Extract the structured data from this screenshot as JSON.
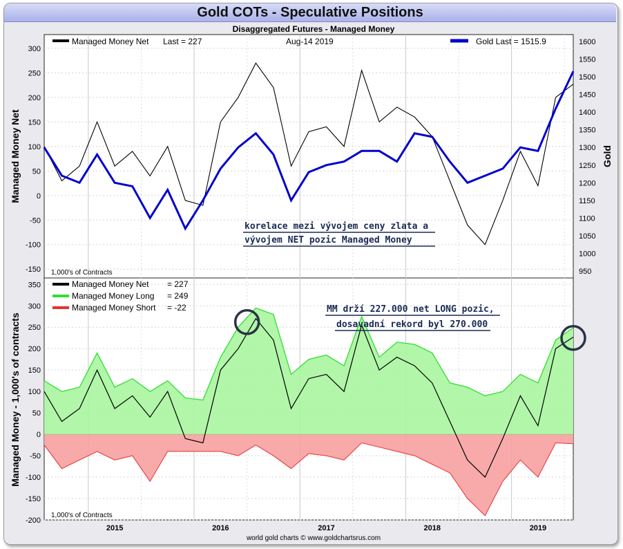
{
  "title": "Gold COTs - Speculative Positions",
  "subtitle": "Disaggregated Futures - Managed Money",
  "footer": "world gold charts © www.goldchartsrus.com",
  "colors": {
    "net": "#000000",
    "gold": "#0000cc",
    "long_line": "#33dd33",
    "long_fill": "#a8f5a0",
    "short_line": "#e83030",
    "short_fill": "#f7a0a0",
    "annotation": "#1a2a55"
  },
  "chart_data": [
    {
      "type": "line",
      "panel": "top",
      "date_label": "Aug-14 2019",
      "ylabel_left": "Managed Money Net",
      "ylabel_right": "Gold",
      "units_note": "1,000's of Contracts",
      "ylim_left": [
        -150,
        300
      ],
      "ylim_right": [
        950,
        1600
      ],
      "yticks_left": [
        -150,
        -100,
        -50,
        0,
        50,
        100,
        150,
        200,
        250,
        300
      ],
      "yticks_right": [
        950,
        1000,
        1050,
        1100,
        1150,
        1200,
        1250,
        1300,
        1350,
        1400,
        1450,
        1500,
        1550,
        1600
      ],
      "legend": [
        {
          "key": "net",
          "label": "Managed Money Net",
          "last_label": "Last = 227"
        },
        {
          "key": "gold",
          "label": "Gold Last = 1515.9"
        }
      ],
      "annotation": [
        "korelace mezi vývojem ceny zlata a",
        "vývojem NET pozic Managed Money"
      ],
      "x": [
        "2014-08",
        "2014-10",
        "2014-12",
        "2015-02",
        "2015-04",
        "2015-06",
        "2015-08",
        "2015-10",
        "2015-12",
        "2016-02",
        "2016-04",
        "2016-06",
        "2016-08",
        "2016-10",
        "2016-12",
        "2017-02",
        "2017-04",
        "2017-06",
        "2017-08",
        "2017-10",
        "2017-12",
        "2018-02",
        "2018-04",
        "2018-06",
        "2018-08",
        "2018-10",
        "2018-12",
        "2019-02",
        "2019-04",
        "2019-06",
        "2019-08"
      ],
      "series": [
        {
          "name": "Managed Money Net",
          "axis": "left",
          "values": [
            100,
            30,
            60,
            150,
            60,
            90,
            40,
            100,
            -10,
            -20,
            150,
            200,
            270,
            220,
            60,
            130,
            140,
            100,
            255,
            150,
            180,
            160,
            120,
            30,
            -60,
            -100,
            -10,
            90,
            20,
            200,
            227
          ]
        },
        {
          "name": "Gold",
          "axis": "right",
          "values": [
            1300,
            1220,
            1200,
            1280,
            1200,
            1190,
            1100,
            1180,
            1070,
            1150,
            1240,
            1300,
            1340,
            1280,
            1150,
            1230,
            1250,
            1260,
            1290,
            1290,
            1260,
            1340,
            1330,
            1260,
            1200,
            1220,
            1240,
            1300,
            1290,
            1410,
            1515.9
          ]
        }
      ]
    },
    {
      "type": "area",
      "panel": "bottom",
      "ylabel": "Managed Money - 1,000's of contracts",
      "units_note": "1,000's of Contracts",
      "ylim": [
        -200,
        350
      ],
      "yticks": [
        -200,
        -150,
        -100,
        -50,
        0,
        50,
        100,
        150,
        200,
        250,
        300,
        350
      ],
      "legend": [
        {
          "key": "net",
          "label": "Managed Money Net",
          "value": "= 227"
        },
        {
          "key": "long",
          "label": "Managed Money Long",
          "value": "= 249"
        },
        {
          "key": "short",
          "label": "Managed Money Short",
          "value": "= -22"
        }
      ],
      "annotation": [
        "MM drží 227.000 net LONG pozic,",
        "dosavadní rekord byl 270.000"
      ],
      "circles_at": [
        "2016-07",
        "2019-08"
      ],
      "x_tick_labels": [
        "2015",
        "2016",
        "2017",
        "2018",
        "2019"
      ],
      "x": [
        "2014-08",
        "2014-10",
        "2014-12",
        "2015-02",
        "2015-04",
        "2015-06",
        "2015-08",
        "2015-10",
        "2015-12",
        "2016-02",
        "2016-04",
        "2016-06",
        "2016-08",
        "2016-10",
        "2016-12",
        "2017-02",
        "2017-04",
        "2017-06",
        "2017-08",
        "2017-10",
        "2017-12",
        "2018-02",
        "2018-04",
        "2018-06",
        "2018-08",
        "2018-10",
        "2018-12",
        "2019-02",
        "2019-04",
        "2019-06",
        "2019-08"
      ],
      "series": [
        {
          "name": "Managed Money Net",
          "values": [
            100,
            30,
            60,
            150,
            60,
            90,
            40,
            100,
            -10,
            -20,
            150,
            200,
            270,
            220,
            60,
            130,
            140,
            100,
            255,
            150,
            180,
            160,
            120,
            30,
            -60,
            -100,
            -10,
            90,
            20,
            200,
            227
          ]
        },
        {
          "name": "Managed Money Long",
          "values": [
            125,
            100,
            110,
            190,
            110,
            130,
            100,
            125,
            85,
            80,
            180,
            250,
            295,
            280,
            140,
            175,
            185,
            160,
            275,
            180,
            215,
            210,
            190,
            120,
            110,
            90,
            100,
            140,
            120,
            220,
            249
          ]
        },
        {
          "name": "Managed Money Short",
          "values": [
            -25,
            -80,
            -60,
            -40,
            -60,
            -50,
            -110,
            -40,
            -40,
            -40,
            -40,
            -50,
            -25,
            -50,
            -80,
            -45,
            -50,
            -60,
            -20,
            -30,
            -40,
            -50,
            -70,
            -90,
            -150,
            -190,
            -110,
            -60,
            -100,
            -20,
            -22
          ]
        }
      ]
    }
  ]
}
